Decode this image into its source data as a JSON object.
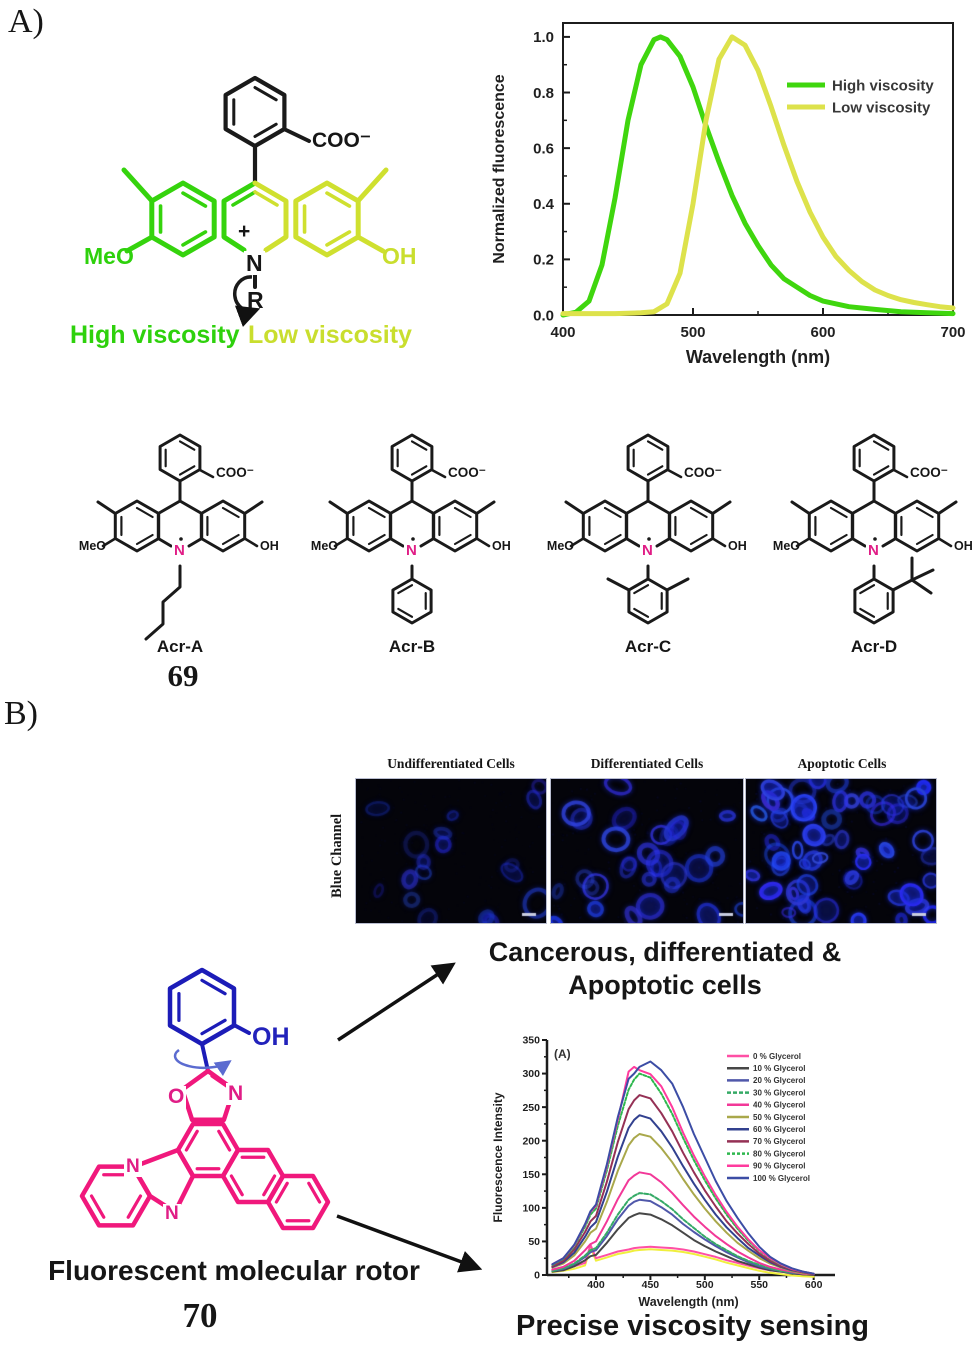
{
  "figure": {
    "panel_a": {
      "label": "A)",
      "structure": {
        "high_label": "High viscosity",
        "low_label": "Low viscosity"
      },
      "variant_labels": [
        "Acr-A",
        "Acr-B",
        "Acr-C",
        "Acr-D"
      ],
      "compound_number": "69"
    },
    "panel_b": {
      "label": "B)",
      "microscopy": {
        "row_label": "Blue Channel",
        "panel_titles": [
          "Undifferentiated Cells",
          "Differentiated Cells",
          "Apoptotic Cells"
        ]
      },
      "caption_line1": "Cancerous, differentiated &",
      "caption_line2": "Apoptotic cells",
      "rotor_caption": "Fluorescent molecular rotor",
      "compound_number": "70",
      "sensing_caption": "Precise viscosity sensing"
    },
    "atoms": {
      "meo": "MeO",
      "oh": "OH",
      "coo": "COO⁻",
      "n": "N",
      "o": "O",
      "r": "R",
      "plus": "+"
    },
    "colors": {
      "high_viscosity": "#2ed10c",
      "low_viscosity": "#c9de2e",
      "structure_pink": "#f0187c",
      "structure_blue": "#1c1cb8",
      "n_highlight": "#e01d86",
      "cell_blue": "#2337f5"
    }
  },
  "chart_data": [
    {
      "type": "line",
      "title": "",
      "xlabel": "Wavelength (nm)",
      "ylabel": "Normalized fluorescence",
      "xlim": [
        400,
        700
      ],
      "ylim": [
        0,
        1.05
      ],
      "xticks": [
        400,
        500,
        600,
        700
      ],
      "yticks": [
        0.0,
        0.2,
        0.4,
        0.6,
        0.8,
        1.0
      ],
      "grid": false,
      "legend_position": "top-right",
      "series": [
        {
          "name": "High viscosity",
          "color": "#3fd60e",
          "x": [
            400,
            410,
            420,
            430,
            440,
            450,
            460,
            470,
            475,
            480,
            490,
            500,
            510,
            520,
            530,
            540,
            550,
            560,
            570,
            580,
            590,
            600,
            620,
            640,
            660,
            680,
            700
          ],
          "y": [
            0,
            0.01,
            0.05,
            0.18,
            0.42,
            0.7,
            0.9,
            0.99,
            1,
            0.99,
            0.93,
            0.82,
            0.68,
            0.55,
            0.43,
            0.33,
            0.25,
            0.18,
            0.13,
            0.1,
            0.07,
            0.05,
            0.03,
            0.02,
            0.012,
            0.008,
            0.005
          ]
        },
        {
          "name": "Low viscosity",
          "color": "#dde24b",
          "x": [
            400,
            420,
            440,
            460,
            470,
            480,
            490,
            500,
            510,
            520,
            530,
            540,
            550,
            560,
            570,
            580,
            590,
            600,
            610,
            620,
            630,
            640,
            650,
            660,
            670,
            680,
            690,
            700
          ],
          "y": [
            0.005,
            0.005,
            0.005,
            0.008,
            0.012,
            0.04,
            0.15,
            0.4,
            0.7,
            0.92,
            1,
            0.97,
            0.88,
            0.75,
            0.61,
            0.48,
            0.37,
            0.28,
            0.21,
            0.16,
            0.12,
            0.09,
            0.07,
            0.055,
            0.045,
            0.037,
            0.03,
            0.025
          ]
        }
      ]
    },
    {
      "type": "line",
      "annotation": "(A)",
      "xlabel": "Wavelength (nm)",
      "ylabel": "Fluorescence Intensity",
      "xlim": [
        355,
        615
      ],
      "ylim": [
        0,
        350
      ],
      "xticks": [
        400,
        450,
        500,
        550,
        600
      ],
      "yticks": [
        0,
        50,
        100,
        150,
        200,
        250,
        300,
        350
      ],
      "grid": false,
      "legend_position": "top-right",
      "x": [
        360,
        370,
        380,
        390,
        395,
        400,
        410,
        420,
        430,
        435,
        440,
        450,
        460,
        470,
        480,
        490,
        500,
        510,
        520,
        530,
        540,
        550,
        560,
        570,
        580,
        590,
        600
      ],
      "series": [
        {
          "name": "0 % Glycerol",
          "color": "#ff4fa5",
          "underlay_color": "#f0ef3d",
          "values": [
            8,
            10,
            13,
            18,
            45,
            25,
            30,
            35,
            38,
            40,
            41,
            42,
            41,
            40,
            38,
            35,
            31,
            27,
            22,
            18,
            14,
            10,
            7,
            5,
            3,
            2,
            1
          ]
        },
        {
          "name": "10 % Glycerol",
          "color": "#474747",
          "values": [
            5,
            7,
            13,
            22,
            28,
            30,
            48,
            68,
            85,
            89,
            92,
            90,
            83,
            74,
            63,
            52,
            43,
            35,
            28,
            21,
            16,
            11,
            7,
            5,
            3,
            1,
            0
          ]
        },
        {
          "name": "20 % Glycerol",
          "color": "#5058aa",
          "values": [
            6,
            9,
            16,
            27,
            34,
            37,
            58,
            83,
            103,
            109,
            112,
            110,
            101,
            90,
            76,
            64,
            53,
            43,
            34,
            26,
            19,
            13,
            9,
            6,
            3,
            2,
            1
          ]
        },
        {
          "name": "30 % Glycerol",
          "color": "#35aa66",
          "dash": "4 2",
          "values": [
            6,
            10,
            17,
            29,
            37,
            40,
            63,
            90,
            112,
            118,
            122,
            120,
            110,
            98,
            83,
            70,
            57,
            46,
            37,
            28,
            21,
            15,
            10,
            6,
            4,
            2,
            1
          ]
        },
        {
          "name": "40 % Glycerol",
          "color": "#f23898",
          "values": [
            8,
            12,
            21,
            37,
            46,
            50,
            80,
            113,
            141,
            148,
            153,
            150,
            138,
            122,
            104,
            87,
            72,
            58,
            46,
            35,
            26,
            18,
            12,
            8,
            5,
            2,
            1
          ]
        },
        {
          "name": "50 % Glycerol",
          "color": "#a9a84b",
          "values": [
            11,
            17,
            29,
            50,
            63,
            69,
            109,
            155,
            193,
            204,
            210,
            206,
            189,
            168,
            143,
            120,
            99,
            80,
            63,
            48,
            36,
            25,
            17,
            11,
            6,
            3,
            1
          ]
        },
        {
          "name": "60 % Glycerol",
          "color": "#32418f",
          "values": [
            12,
            19,
            33,
            57,
            71,
            79,
            124,
            176,
            219,
            231,
            238,
            233,
            214,
            190,
            162,
            136,
            112,
            90,
            71,
            55,
            40,
            29,
            19,
            12,
            7,
            4,
            1
          ]
        },
        {
          "name": "70 % Glycerol",
          "color": "#953155",
          "values": [
            13,
            21,
            38,
            64,
            80,
            88,
            139,
            198,
            247,
            260,
            268,
            263,
            241,
            214,
            182,
            153,
            126,
            102,
            80,
            62,
            46,
            32,
            21,
            13,
            8,
            4,
            1
          ]
        },
        {
          "name": "80 % Glycerol",
          "color": "#2eb84e",
          "dash": "3 2",
          "values": [
            15,
            24,
            42,
            72,
            90,
            99,
            156,
            222,
            276,
            291,
            300,
            294,
            270,
            240,
            204,
            171,
            141,
            114,
            90,
            69,
            51,
            36,
            24,
            15,
            9,
            5,
            2
          ]
        },
        {
          "name": "90 % Glycerol",
          "color": "#ff3b9e",
          "values": [
            16,
            25,
            44,
            75,
            94,
            103,
            162,
            231,
            303,
            310,
            305,
            299,
            281,
            250,
            212,
            178,
            147,
            119,
            94,
            72,
            53,
            37,
            25,
            16,
            9,
            5,
            2
          ]
        },
        {
          "name": "100 % Glycerol",
          "color": "#3c4da5",
          "values": [
            16,
            25,
            45,
            76,
            95,
            105,
            165,
            235,
            292,
            300,
            310,
            318,
            305,
            285,
            250,
            210,
            175,
            140,
            110,
            85,
            62,
            42,
            27,
            17,
            10,
            5,
            2
          ]
        }
      ]
    }
  ]
}
